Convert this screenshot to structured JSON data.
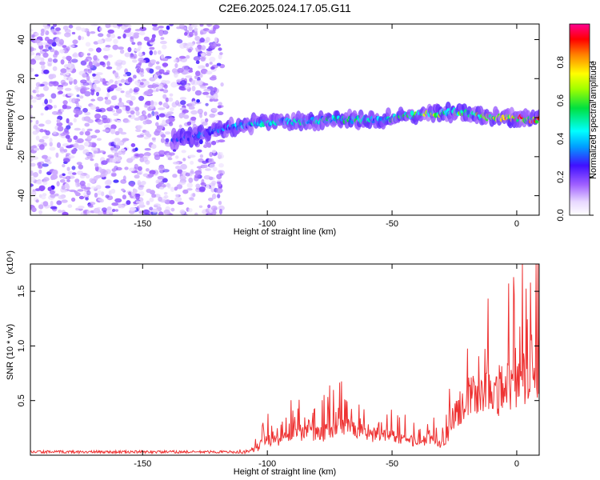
{
  "title": "C2E6.2025.024.17.05.G11",
  "chart_data": [
    {
      "type": "heatmap",
      "xlabel": "Height of straight line (km)",
      "ylabel": "Frequency (Hz)",
      "xlim": [
        -195,
        9
      ],
      "ylim": [
        -50,
        48
      ],
      "xticks": [
        -150,
        -100,
        -50,
        0
      ],
      "yticks": [
        -40,
        -20,
        0,
        20,
        40
      ],
      "colorbar": {
        "label": "Normalized spectral amplitude",
        "range": [
          0,
          1
        ],
        "ticks": [
          "0.0",
          "0.2",
          "0.4",
          "0.6",
          "0.8"
        ]
      },
      "noise_region": {
        "x_range": [
          -195,
          -118
        ],
        "y_range": [
          -50,
          48
        ],
        "amplitude": 0.2
      },
      "signal_track": {
        "x": [
          -135,
          -125,
          -115,
          -105,
          -95,
          -85,
          -75,
          -65,
          -55,
          -45,
          -35,
          -25,
          -15,
          -5,
          5
        ],
        "frequency": [
          -11,
          -8,
          -5,
          -3,
          -2,
          -2,
          -1,
          -1,
          -1,
          1,
          2,
          3,
          1,
          0,
          -1
        ],
        "amplitude": [
          0.3,
          0.35,
          0.4,
          0.5,
          0.5,
          0.5,
          0.55,
          0.55,
          0.5,
          0.65,
          0.7,
          0.7,
          0.75,
          0.95,
          0.9
        ]
      },
      "grid": false
    },
    {
      "type": "line",
      "xlabel": "Height of straight line (km)",
      "ylabel": "SNR (10 * v/v)",
      "yscale_label": "(x10⁴)",
      "xlim": [
        -195,
        9
      ],
      "ylim": [
        0,
        17500
      ],
      "xticks": [
        -150,
        -100,
        -50,
        0
      ],
      "yticks": [
        "0.5",
        "1.0",
        "1.5"
      ],
      "series": [
        {
          "color": "#ee3333",
          "x": [
            -195,
            -150,
            -112,
            -105,
            -100,
            -95,
            -90,
            -85,
            -80,
            -75,
            -70,
            -65,
            -60,
            -55,
            -50,
            -45,
            -40,
            -35,
            -30,
            -25,
            -20,
            -15,
            -10,
            -5,
            0,
            5,
            7,
            9
          ],
          "y": [
            300,
            300,
            300,
            1000,
            2500,
            2200,
            3500,
            3800,
            3200,
            4200,
            4500,
            3800,
            3400,
            3200,
            3000,
            2500,
            2200,
            2800,
            1500,
            6000,
            9000,
            10500,
            9000,
            11000,
            11500,
            12500,
            17500,
            11000
          ]
        }
      ],
      "grid": false
    }
  ]
}
